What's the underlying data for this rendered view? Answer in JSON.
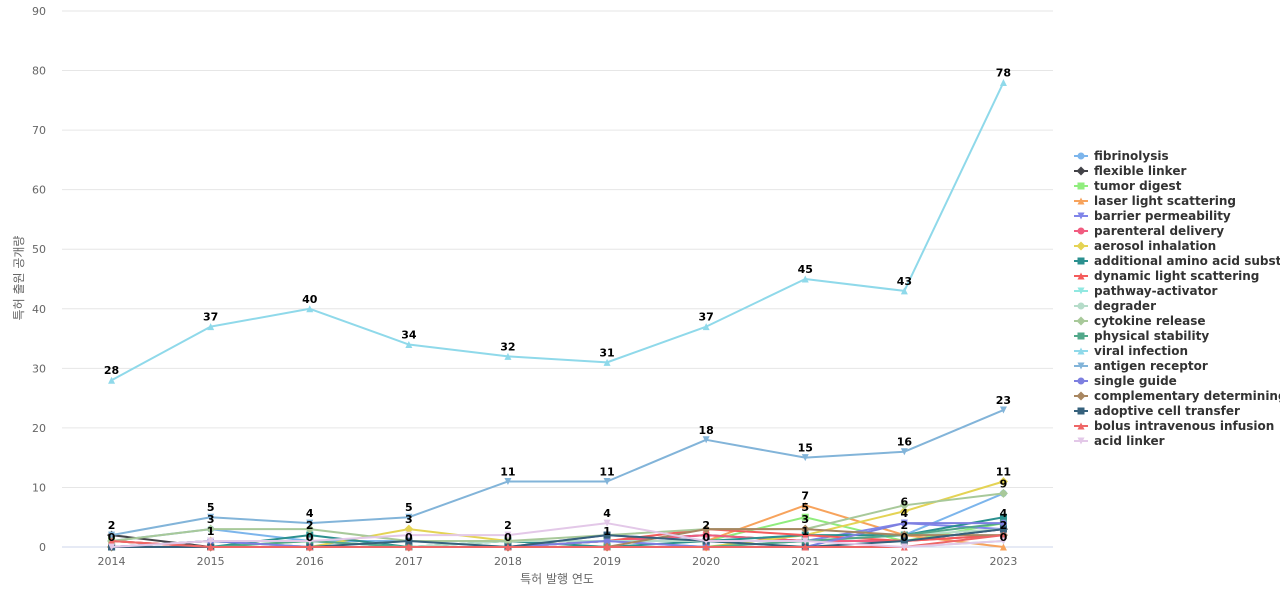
{
  "chart_data": {
    "type": "line",
    "title": "",
    "xlabel": "특허 발행 연도",
    "ylabel": "특허 출원 공개량",
    "x": [
      "2014",
      "2015",
      "2016",
      "2017",
      "2018",
      "2019",
      "2020",
      "2021",
      "2022",
      "2023"
    ],
    "ylim": [
      0,
      90
    ],
    "yticks": [
      0,
      10,
      20,
      30,
      40,
      50,
      60,
      70,
      80,
      90
    ],
    "grid": true,
    "legend_position": "right",
    "series": [
      {
        "name": "fibrinolysis",
        "color": "#7cb5ec",
        "marker": "circle",
        "values": [
          1,
          3,
          1,
          1,
          1,
          1,
          0,
          1,
          2,
          9
        ]
      },
      {
        "name": "flexible linker",
        "color": "#434348",
        "marker": "diamond",
        "values": [
          2,
          0,
          0,
          0,
          0,
          1,
          2,
          1,
          1,
          3
        ]
      },
      {
        "name": "tumor digest",
        "color": "#90ed7d",
        "marker": "square",
        "values": [
          1,
          0,
          1,
          0,
          1,
          1,
          1,
          5,
          1,
          4
        ]
      },
      {
        "name": "laser light scattering",
        "color": "#f7a35c",
        "marker": "triangle",
        "values": [
          0,
          1,
          0,
          0,
          0,
          1,
          1,
          7,
          2,
          0
        ]
      },
      {
        "name": "barrier permeability",
        "color": "#8085e9",
        "marker": "triangle-down",
        "values": [
          0,
          1,
          1,
          0,
          0,
          2,
          1,
          1,
          4,
          3
        ]
      },
      {
        "name": "parenteral delivery",
        "color": "#f15c80",
        "marker": "circle",
        "values": [
          1,
          0,
          0,
          0,
          0,
          1,
          2,
          1,
          1,
          2
        ]
      },
      {
        "name": "aerosol inhalation",
        "color": "#e4d354",
        "marker": "diamond",
        "values": [
          0,
          1,
          0,
          3,
          1,
          0,
          0,
          2,
          6,
          11
        ]
      },
      {
        "name": "additional amino acid subst...",
        "color": "#2b908f",
        "marker": "square",
        "values": [
          0,
          0,
          2,
          0,
          1,
          0,
          1,
          2,
          2,
          5
        ]
      },
      {
        "name": "dynamic light scattering",
        "color": "#f45b5b",
        "marker": "triangle",
        "values": [
          1,
          0,
          0,
          0,
          0,
          1,
          3,
          2,
          1,
          2
        ]
      },
      {
        "name": "pathway-activator",
        "color": "#91e8e1",
        "marker": "triangle-down",
        "values": [
          0,
          1,
          0,
          1,
          0,
          1,
          1,
          0,
          0,
          1
        ]
      },
      {
        "name": "degrader",
        "color": "#b5dcc9",
        "marker": "circle",
        "values": [
          0,
          1,
          1,
          0,
          1,
          1,
          1,
          1,
          2,
          3
        ]
      },
      {
        "name": "cytokine release",
        "color": "#a8c99a",
        "marker": "diamond",
        "values": [
          1,
          3,
          3,
          1,
          1,
          2,
          3,
          3,
          7,
          9
        ]
      },
      {
        "name": "physical stability",
        "color": "#52a88a",
        "marker": "square",
        "values": [
          0,
          0,
          1,
          0,
          0,
          0,
          0,
          1,
          2,
          4
        ]
      },
      {
        "name": "viral infection",
        "color": "#8fd9ea",
        "marker": "triangle",
        "values": [
          28,
          37,
          40,
          34,
          32,
          31,
          37,
          45,
          43,
          78
        ]
      },
      {
        "name": "antigen receptor",
        "color": "#82b4d9",
        "marker": "triangle-down",
        "values": [
          2,
          5,
          4,
          5,
          11,
          11,
          18,
          15,
          16,
          23
        ]
      },
      {
        "name": "single guide",
        "color": "#7d7fe0",
        "marker": "circle",
        "values": [
          0,
          1,
          0,
          0,
          0,
          1,
          0,
          0,
          4,
          4
        ]
      },
      {
        "name": "complementary determining",
        "color": "#a88660",
        "marker": "diamond",
        "values": [
          0,
          0,
          0,
          0,
          0,
          0,
          3,
          3,
          2,
          2
        ]
      },
      {
        "name": "adoptive cell transfer",
        "color": "#36617c",
        "marker": "square",
        "values": [
          0,
          0,
          0,
          1,
          0,
          2,
          1,
          0,
          1,
          3
        ]
      },
      {
        "name": "bolus intravenous infusion",
        "color": "#ee6666",
        "marker": "triangle",
        "values": [
          1,
          0,
          0,
          0,
          0,
          0,
          0,
          0,
          0,
          2
        ]
      },
      {
        "name": "acid linker",
        "color": "#e3c8e8",
        "marker": "triangle-down",
        "values": [
          0,
          1,
          1,
          2,
          2,
          4,
          1,
          1,
          0,
          1
        ]
      }
    ],
    "data_labels": [
      {
        "x": "2014",
        "y": 28,
        "text": "28"
      },
      {
        "x": "2015",
        "y": 37,
        "text": "37"
      },
      {
        "x": "2016",
        "y": 40,
        "text": "40"
      },
      {
        "x": "2017",
        "y": 34,
        "text": "34"
      },
      {
        "x": "2018",
        "y": 32,
        "text": "32"
      },
      {
        "x": "2019",
        "y": 31,
        "text": "31"
      },
      {
        "x": "2020",
        "y": 37,
        "text": "37"
      },
      {
        "x": "2021",
        "y": 45,
        "text": "45"
      },
      {
        "x": "2022",
        "y": 43,
        "text": "43"
      },
      {
        "x": "2023",
        "y": 78,
        "text": "78"
      },
      {
        "x": "2018",
        "y": 11,
        "text": "11"
      },
      {
        "x": "2019",
        "y": 11,
        "text": "11"
      },
      {
        "x": "2020",
        "y": 18,
        "text": "18"
      },
      {
        "x": "2021",
        "y": 15,
        "text": "15"
      },
      {
        "x": "2022",
        "y": 16,
        "text": "16"
      },
      {
        "x": "2023",
        "y": 23,
        "text": "23"
      },
      {
        "x": "2023",
        "y": 11,
        "text": "11"
      },
      {
        "x": "2023",
        "y": 9,
        "text": "9"
      },
      {
        "x": "2022",
        "y": 6,
        "text": "6"
      },
      {
        "x": "2021",
        "y": 7,
        "text": "7"
      },
      {
        "x": "2014",
        "y": 2,
        "text": "2"
      },
      {
        "x": "2014",
        "y": 0,
        "text": "0"
      },
      {
        "x": "2015",
        "y": 5,
        "text": "5"
      },
      {
        "x": "2015",
        "y": 3,
        "text": "3"
      },
      {
        "x": "2015",
        "y": 1,
        "text": "1"
      },
      {
        "x": "2016",
        "y": 4,
        "text": "4"
      },
      {
        "x": "2016",
        "y": 2,
        "text": "2"
      },
      {
        "x": "2016",
        "y": 0,
        "text": "0"
      },
      {
        "x": "2017",
        "y": 5,
        "text": "5"
      },
      {
        "x": "2017",
        "y": 3,
        "text": "3"
      },
      {
        "x": "2017",
        "y": 0,
        "text": "0"
      },
      {
        "x": "2018",
        "y": 2,
        "text": "2"
      },
      {
        "x": "2018",
        "y": 0,
        "text": "0"
      },
      {
        "x": "2019",
        "y": 4,
        "text": "4"
      },
      {
        "x": "2019",
        "y": 1,
        "text": "1"
      },
      {
        "x": "2020",
        "y": 2,
        "text": "2"
      },
      {
        "x": "2020",
        "y": 0,
        "text": "0"
      },
      {
        "x": "2021",
        "y": 5,
        "text": "5"
      },
      {
        "x": "2021",
        "y": 3,
        "text": "3"
      },
      {
        "x": "2021",
        "y": 1,
        "text": "1"
      },
      {
        "x": "2022",
        "y": 4,
        "text": "4"
      },
      {
        "x": "2022",
        "y": 2,
        "text": "2"
      },
      {
        "x": "2022",
        "y": 0,
        "text": "0"
      },
      {
        "x": "2023",
        "y": 4,
        "text": "4"
      },
      {
        "x": "2023",
        "y": 2,
        "text": "2"
      },
      {
        "x": "2023",
        "y": 0,
        "text": "0"
      }
    ]
  }
}
